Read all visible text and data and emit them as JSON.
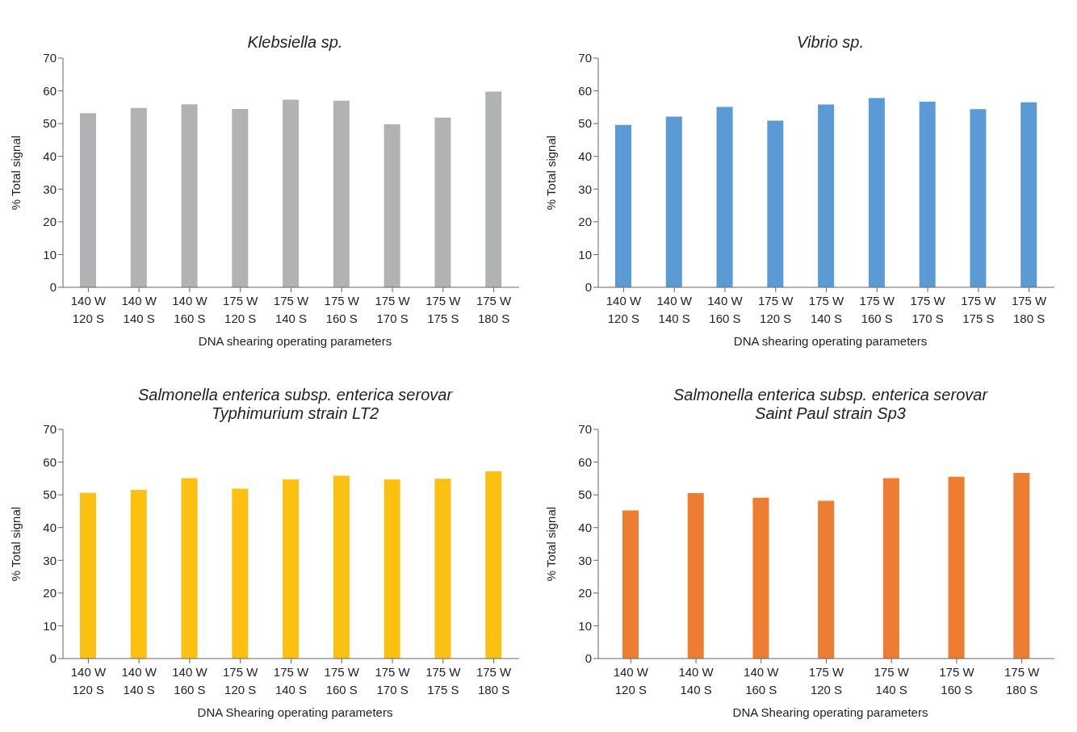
{
  "chart_data": [
    {
      "type": "bar",
      "title": "Klebsiella sp.",
      "xlabel": "DNA shearing operating parameters",
      "ylabel": "% Total signal",
      "categories": [
        "140 W\n120 S",
        "140 W\n140 S",
        "140 W\n160 S",
        "175 W\n120 S",
        "175 W\n140 S",
        "175 W\n160 S",
        "175 W\n170 S",
        "175 W\n175 S",
        "175 W\n180 S"
      ],
      "values": [
        53.2,
        54.8,
        55.9,
        54.5,
        57.3,
        57.0,
        49.8,
        51.8,
        59.8
      ],
      "color": "#b1b2b4",
      "ylim": [
        0,
        70
      ],
      "yticks": [
        0,
        10,
        20,
        30,
        40,
        50,
        60,
        70
      ],
      "grid": false,
      "legend": false
    },
    {
      "type": "bar",
      "title": "Vibrio sp.",
      "xlabel": "DNA shearing operating parameters",
      "ylabel": "% Total signal",
      "categories": [
        "140 W\n120 S",
        "140 W\n140 S",
        "140 W\n160 S",
        "175 W\n120 S",
        "175 W\n140 S",
        "175 W\n160 S",
        "175 W\n170 S",
        "175 W\n175 S",
        "175 W\n180 S"
      ],
      "values": [
        49.6,
        52.1,
        55.1,
        50.9,
        55.8,
        57.8,
        56.7,
        54.4,
        56.5
      ],
      "color": "#5b9bd5",
      "ylim": [
        0,
        70
      ],
      "yticks": [
        0,
        10,
        20,
        30,
        40,
        50,
        60,
        70
      ],
      "grid": false,
      "legend": false
    },
    {
      "type": "bar",
      "title": "Salmonella enterica subsp. enterica serovar\nTyphimurium strain LT2",
      "xlabel": "DNA Shearing operating parameters",
      "ylabel": "% Total signal",
      "categories": [
        "140 W\n120 S",
        "140 W\n140 S",
        "140 W\n160 S",
        "175 W\n120 S",
        "175 W\n140 S",
        "175 W\n160 S",
        "175 W\n170 S",
        "175 W\n175 S",
        "175 W\n180 S"
      ],
      "values": [
        50.6,
        51.5,
        55.1,
        51.9,
        54.7,
        55.8,
        54.7,
        54.9,
        57.2
      ],
      "color": "#fcc010",
      "ylim": [
        0,
        70
      ],
      "yticks": [
        0,
        10,
        20,
        30,
        40,
        50,
        60,
        70
      ],
      "grid": false,
      "legend": false
    },
    {
      "type": "bar",
      "title": "Salmonella enterica subsp. enterica serovar\nSaint Paul strain Sp3",
      "xlabel": "DNA Shearing operating parameters",
      "ylabel": "% Total signal",
      "categories": [
        "140 W\n120 S",
        "140 W\n140 S",
        "140 W\n160 S",
        "175 W\n120 S",
        "175 W\n140 S",
        "175 W\n160 S",
        "175 W\n180 S"
      ],
      "values": [
        45.2,
        50.5,
        49.1,
        48.2,
        55.1,
        55.5,
        56.7
      ],
      "color": "#ed7d31",
      "ylim": [
        0,
        70
      ],
      "yticks": [
        0,
        10,
        20,
        30,
        40,
        50,
        60,
        70
      ],
      "grid": false,
      "legend": false
    }
  ]
}
